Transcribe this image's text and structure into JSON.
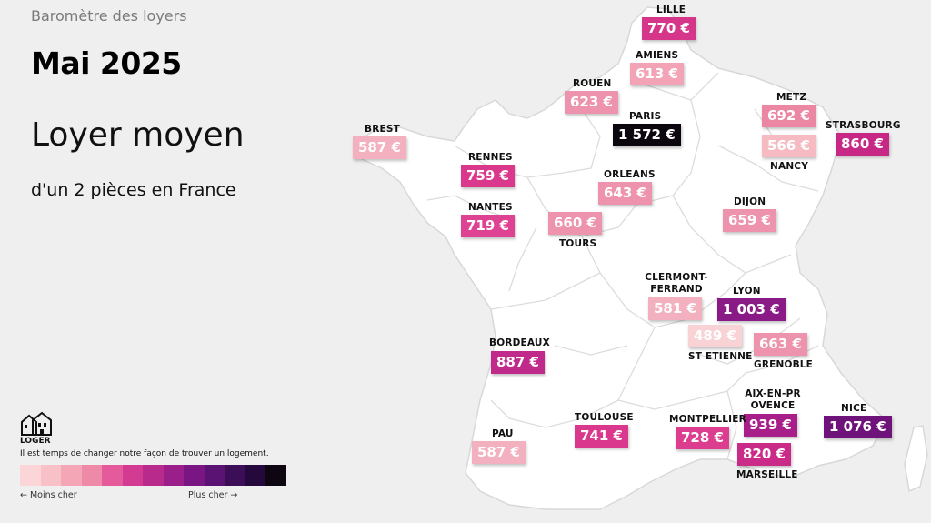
{
  "header": {
    "top_label": "Baromètre des loyers",
    "month": "Mai 2025",
    "headline": "Loyer moyen",
    "subheadline": "d'un 2 pièces en France"
  },
  "cities": [
    {
      "name": "LILLE",
      "price": "770 €",
      "color": "#d6368a"
    },
    {
      "name": "AMIENS",
      "price": "613 €",
      "color": "#f2a4b6"
    },
    {
      "name": "ROUEN",
      "price": "623 €",
      "color": "#ee93ad"
    },
    {
      "name": "PARIS",
      "price": "1 572 €",
      "color": "#0c060f"
    },
    {
      "name": "METZ",
      "price": "692 €",
      "color": "#eb86a3"
    },
    {
      "name": "STRASBOURG",
      "price": "860 €",
      "color": "#c72886"
    },
    {
      "name": "NANCY",
      "price": "566 €",
      "color": "#f6bac3"
    },
    {
      "name": "BREST",
      "price": "587 €",
      "color": "#f3b0bf"
    },
    {
      "name": "RENNES",
      "price": "759 €",
      "color": "#d9388c"
    },
    {
      "name": "ORLEANS",
      "price": "643 €",
      "color": "#ee93ad"
    },
    {
      "name": "NANTES",
      "price": "719 €",
      "color": "#de4393"
    },
    {
      "name": "TOURS",
      "price": "660 €",
      "color": "#ee93ad"
    },
    {
      "name": "DIJON",
      "price": "659 €",
      "color": "#ee93ad"
    },
    {
      "name": "CLERMONT-FERRAND",
      "price": "581 €",
      "color": "#f3b0bf"
    },
    {
      "name": "LYON",
      "price": "1 003 €",
      "color": "#8a1a86"
    },
    {
      "name": "ST ETIENNE",
      "price": "489 €",
      "color": "#f8d3d6"
    },
    {
      "name": "GRENOBLE",
      "price": "663 €",
      "color": "#ee93ad"
    },
    {
      "name": "BORDEAUX",
      "price": "887 €",
      "color": "#c02a8a"
    },
    {
      "name": "AIX-EN-PROVENCE",
      "price": "939 €",
      "color": "#a91f8a"
    },
    {
      "name": "NICE",
      "price": "1 076 €",
      "color": "#6e1379"
    },
    {
      "name": "TOULOUSE",
      "price": "741 €",
      "color": "#d9388c"
    },
    {
      "name": "MONTPELLIER",
      "price": "728 €",
      "color": "#dc3d8f"
    },
    {
      "name": "MARSEILLE",
      "price": "820 €",
      "color": "#cb2b88"
    },
    {
      "name": "PAU",
      "price": "587 €",
      "color": "#f3b0bf"
    }
  ],
  "legend": {
    "brand": "LOGER",
    "tagline": "Il est temps de changer notre façon de trouver un logement.",
    "less_label": "← Moins cher",
    "more_label": "Plus cher →",
    "scale_colors": [
      "#fbd5d8",
      "#f8c1c8",
      "#f4a6b7",
      "#ee8aa8",
      "#e45a9a",
      "#d33a91",
      "#b92a8d",
      "#9a1f8a",
      "#7a1684",
      "#5a1273",
      "#3c0e58",
      "#25093c",
      "#0e0610"
    ]
  }
}
